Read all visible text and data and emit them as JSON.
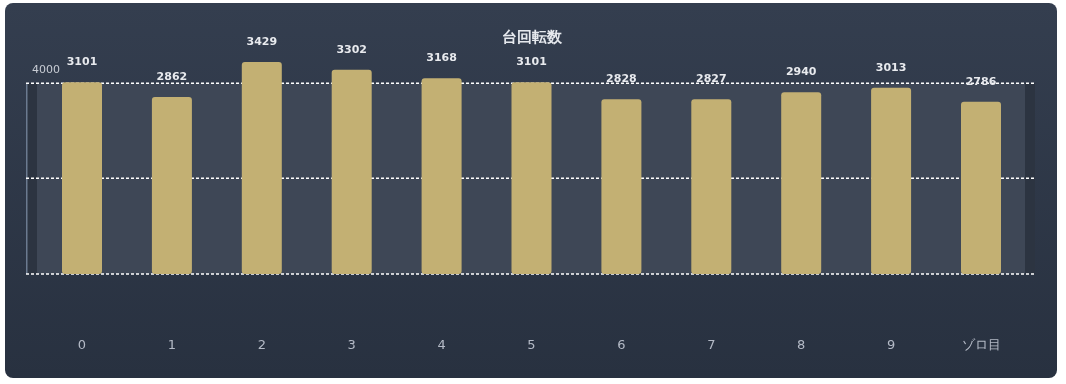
{
  "chart_data": {
    "type": "bar",
    "title": "台回転数",
    "categories": [
      "0",
      "1",
      "2",
      "3",
      "4",
      "5",
      "6",
      "7",
      "8",
      "9",
      "ゾロ目"
    ],
    "series": [
      {
        "color": "#c3b073",
        "values": [
          3101,
          2862,
          3429,
          3302,
          3168,
          3101,
          2828,
          2827,
          2940,
          3013,
          2786
        ]
      }
    ],
    "ref_lines": [
      {
        "axis": "y",
        "value": 0,
        "color": "#ffffff",
        "line_style": "dashed"
      },
      {
        "axis": "y",
        "value": 1550,
        "color": "#ffffff",
        "line_style": "dashed"
      },
      {
        "axis": "y",
        "value": 3085,
        "color": "#ffffff",
        "line_style": "dashed"
      }
    ],
    "data_labels": true,
    "annotations": [
      "4000"
    ]
  }
}
